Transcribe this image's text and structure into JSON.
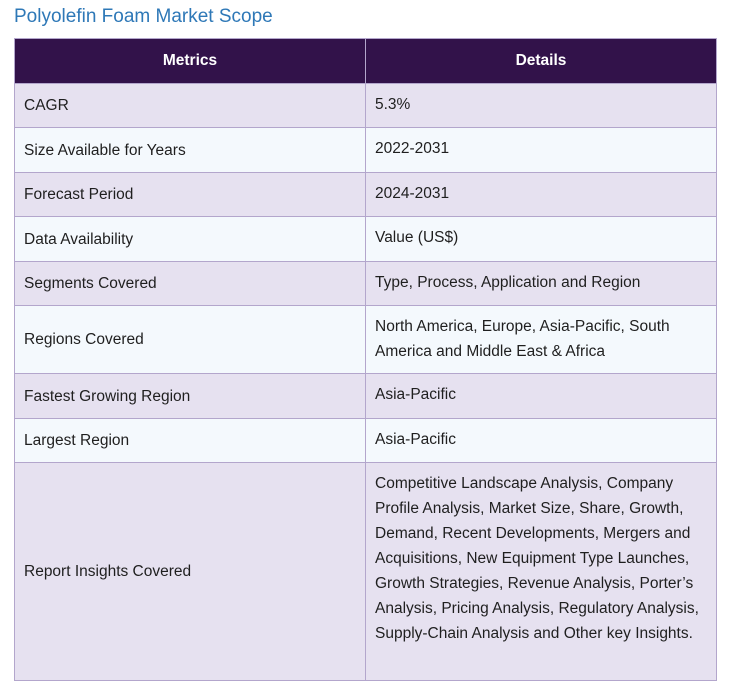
{
  "title": "Polyolefin Foam Market Scope",
  "table": {
    "headers": [
      "Metrics",
      "Details"
    ],
    "rows": [
      {
        "metric": "CAGR",
        "detail": "5.3%"
      },
      {
        "metric": "Size Available for Years",
        "detail": "2022-2031"
      },
      {
        "metric": "Forecast Period",
        "detail": "2024-2031"
      },
      {
        "metric": "Data Availability",
        "detail": "Value (US$)"
      },
      {
        "metric": "Segments Covered",
        "detail": "Type, Process, Application and Region"
      },
      {
        "metric": "Regions Covered",
        "detail": "North America, Europe, Asia-Pacific, South America and Middle East & Africa"
      },
      {
        "metric": "Fastest Growing Region",
        "detail": "Asia-Pacific"
      },
      {
        "metric": "Largest Region",
        "detail": "Asia-Pacific"
      },
      {
        "metric": "Report Insights Covered",
        "detail": "Competitive Landscape Analysis, Company Profile Analysis, Market Size, Share, Growth, Demand, Recent Developments, Mergers and Acquisitions, New Equipment Type Launches, Growth Strategies, Revenue Analysis, Porter’s Analysis, Pricing Analysis, Regulatory Analysis, Supply-Chain Analysis and Other key Insights."
      }
    ]
  }
}
